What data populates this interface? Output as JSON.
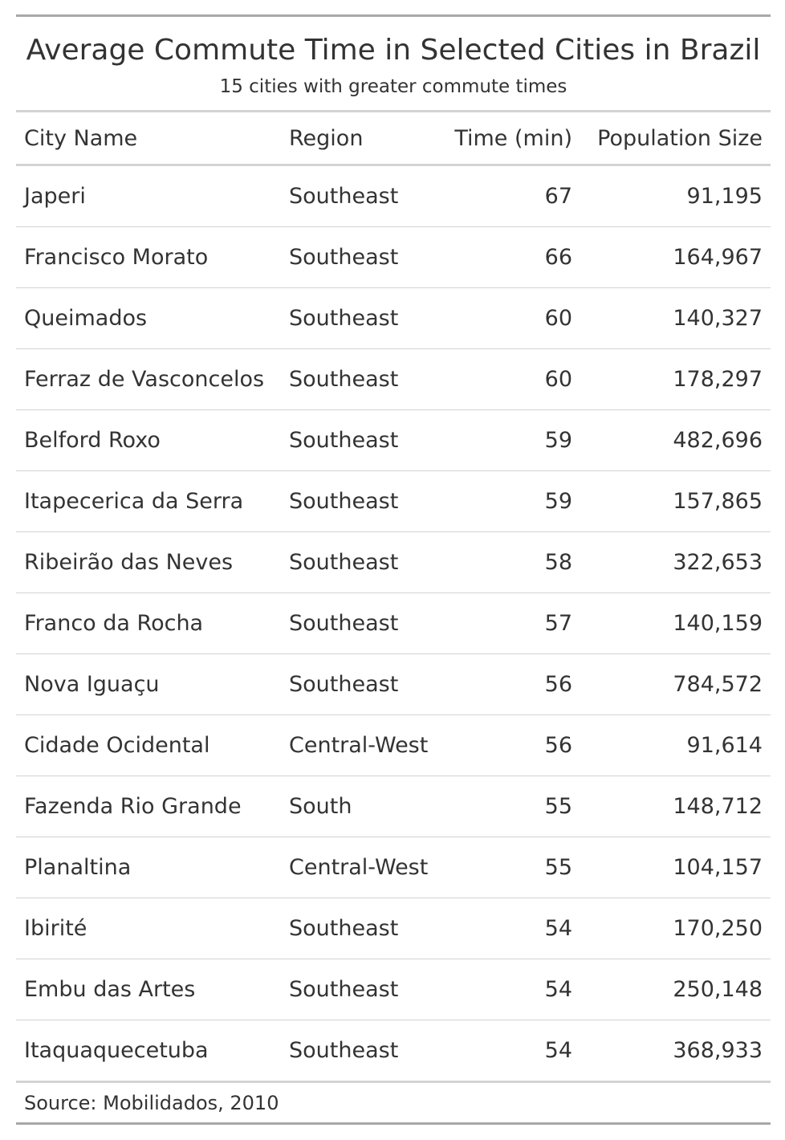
{
  "chart_data": {
    "type": "table",
    "title": "Average Commute Time in Selected Cities in Brazil",
    "subtitle": "15 cities with greater commute times",
    "columns": [
      "City Name",
      "Region",
      "Time (min)",
      "Population Size"
    ],
    "rows": [
      [
        "Japeri",
        "Southeast",
        "67",
        "91,195"
      ],
      [
        "Francisco Morato",
        "Southeast",
        "66",
        "164,967"
      ],
      [
        "Queimados",
        "Southeast",
        "60",
        "140,327"
      ],
      [
        "Ferraz de Vasconcelos",
        "Southeast",
        "60",
        "178,297"
      ],
      [
        "Belford Roxo",
        "Southeast",
        "59",
        "482,696"
      ],
      [
        "Itapecerica da Serra",
        "Southeast",
        "59",
        "157,865"
      ],
      [
        "Ribeirão das Neves",
        "Southeast",
        "58",
        "322,653"
      ],
      [
        "Franco da Rocha",
        "Southeast",
        "57",
        "140,159"
      ],
      [
        "Nova Iguaçu",
        "Southeast",
        "56",
        "784,572"
      ],
      [
        "Cidade Ocidental",
        "Central-West",
        "56",
        "91,614"
      ],
      [
        "Fazenda Rio Grande",
        "South",
        "55",
        "148,712"
      ],
      [
        "Planaltina",
        "Central-West",
        "55",
        "104,157"
      ],
      [
        "Ibirité",
        "Southeast",
        "54",
        "170,250"
      ],
      [
        "Embu das Artes",
        "Southeast",
        "54",
        "250,148"
      ],
      [
        "Itaquaquecetuba",
        "Southeast",
        "54",
        "368,933"
      ]
    ],
    "source_note": "Source: Mobilidados, 2010"
  }
}
